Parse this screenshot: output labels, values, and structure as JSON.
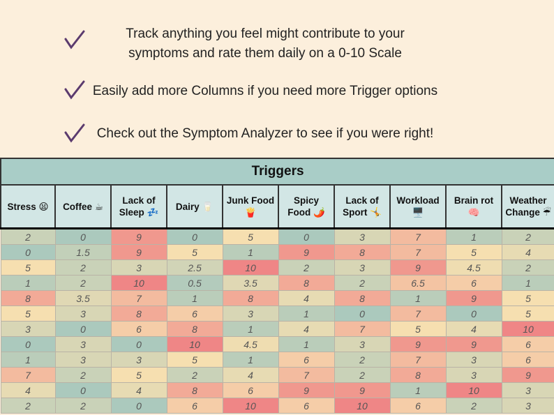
{
  "bullets": [
    {
      "lines": [
        "Track anything you feel might contribute to your",
        "symptoms and rate them daily on a 0-10 Scale"
      ]
    },
    {
      "lines": [
        "Easily add more Columns if you need more Trigger options"
      ]
    },
    {
      "lines": [
        "Check out the Symptom Analyzer to see if you were right!"
      ]
    }
  ],
  "table": {
    "title": "Triggers",
    "headers": [
      "Stress 😫",
      "Coffee ☕",
      "Lack of Sleep 💤",
      "Dairy 🥛",
      "Junk Food 🍟",
      "Spicy Food 🌶️",
      "Lack of Sport 🤸",
      "Workload 🖥️",
      "Brain rot 🧠",
      "Weather Change ☔"
    ],
    "rows": [
      [
        2,
        0,
        9,
        0,
        5,
        0,
        3,
        7,
        1,
        2
      ],
      [
        0,
        1.5,
        9,
        5,
        1,
        9,
        8,
        7,
        5,
        4
      ],
      [
        5,
        2,
        3,
        2.5,
        10,
        2,
        3,
        9,
        4.5,
        2
      ],
      [
        1,
        2,
        10,
        0.5,
        3.5,
        8,
        2,
        6.5,
        6,
        1
      ],
      [
        8,
        3.5,
        7,
        1,
        8,
        4,
        8,
        1,
        9,
        5
      ],
      [
        5,
        3,
        8,
        6,
        3,
        1,
        0,
        7,
        0,
        5
      ],
      [
        3,
        0,
        6,
        8,
        1,
        4,
        7,
        5,
        4,
        10
      ],
      [
        0,
        3,
        0,
        10,
        4.5,
        1,
        3,
        9,
        9,
        6
      ],
      [
        1,
        3,
        3,
        5,
        1,
        6,
        2,
        7,
        3,
        6
      ],
      [
        7,
        2,
        5,
        2,
        4,
        7,
        2,
        8,
        3,
        9
      ],
      [
        4,
        0,
        4,
        8,
        6,
        9,
        9,
        1,
        10,
        3
      ],
      [
        2,
        2,
        0,
        6,
        10,
        6,
        10,
        6,
        2,
        3
      ]
    ],
    "color_scale": {
      "domain": [
        0,
        5,
        10
      ],
      "colors": [
        "#abc9bd",
        "#f6dfb0",
        "#ef8686"
      ]
    }
  }
}
